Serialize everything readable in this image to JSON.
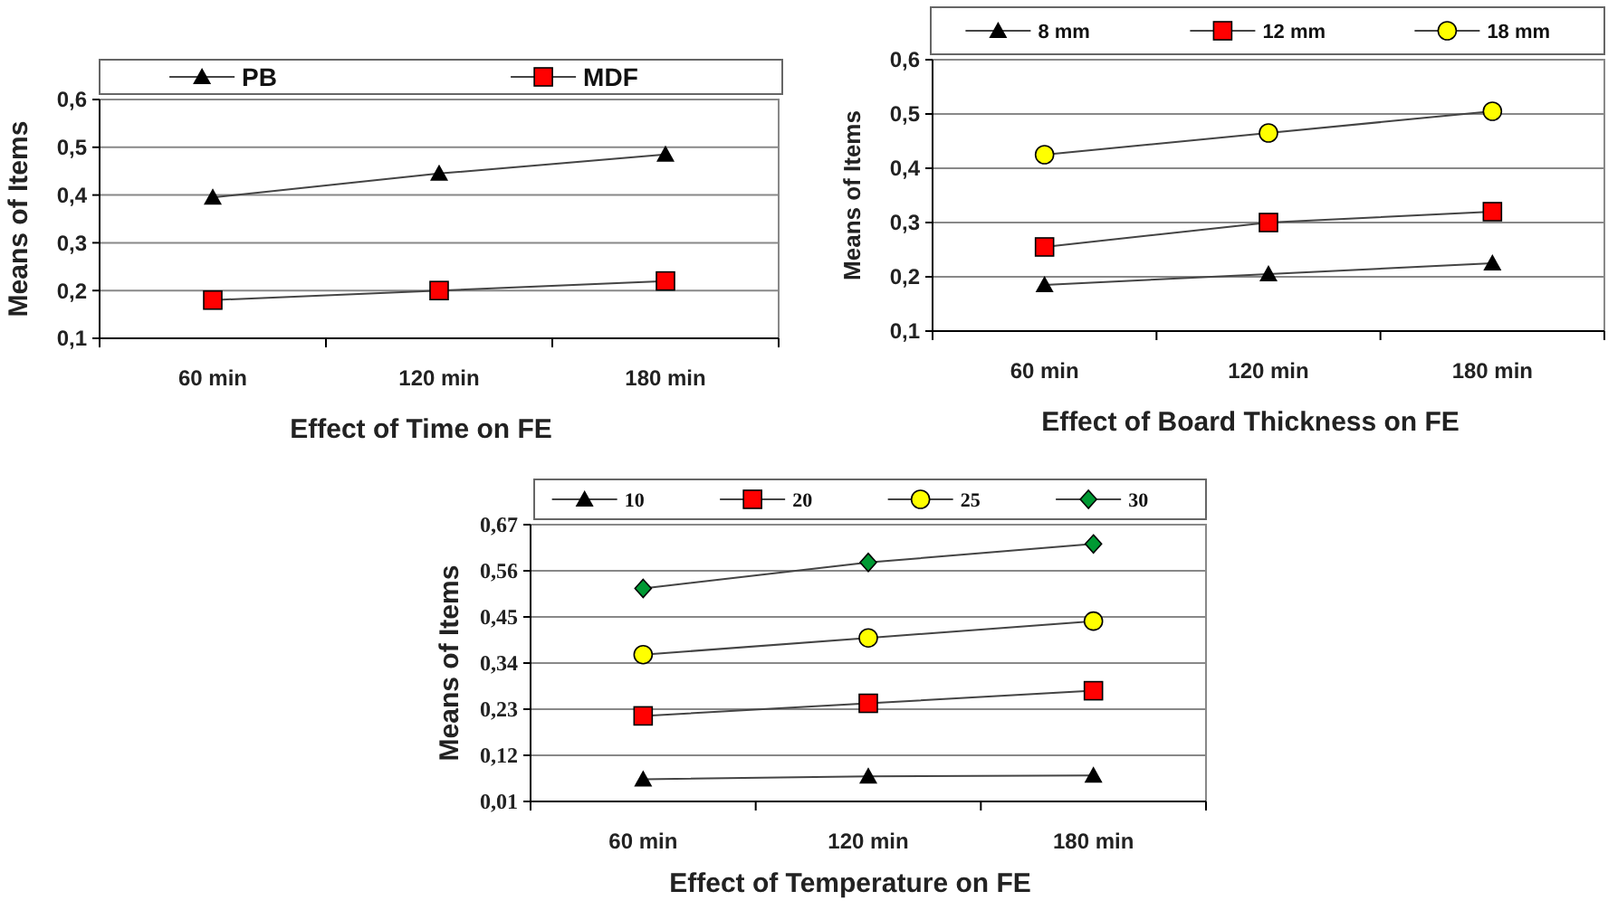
{
  "chart_data": [
    {
      "type": "line",
      "xlabel": "Effect of Time on FE",
      "ylabel": "Means of Items",
      "categories": [
        "60 min",
        "120 min",
        "180 min"
      ],
      "ylim": [
        0.1,
        0.6
      ],
      "yticks": [
        {
          "value": 0.1,
          "label": "0,1"
        },
        {
          "value": 0.2,
          "label": "0,2"
        },
        {
          "value": 0.3,
          "label": "0,3"
        },
        {
          "value": 0.4,
          "label": "0,4"
        },
        {
          "value": 0.5,
          "label": "0,5"
        },
        {
          "value": 0.6,
          "label": "0,6"
        }
      ],
      "grid": "y",
      "legend": "top",
      "series": [
        {
          "name": "PB",
          "color": "#000000",
          "marker": "triangle",
          "values": [
            0.395,
            0.445,
            0.485
          ]
        },
        {
          "name": "MDF",
          "color": "#ff0000",
          "marker": "square",
          "values": [
            0.18,
            0.2,
            0.22
          ]
        }
      ]
    },
    {
      "type": "line",
      "xlabel": "Effect of Board Thickness on FE",
      "ylabel": "Means of Items",
      "categories": [
        "60 min",
        "120 min",
        "180 min"
      ],
      "ylim": [
        0.1,
        0.6
      ],
      "yticks": [
        {
          "value": 0.1,
          "label": "0,1"
        },
        {
          "value": 0.2,
          "label": "0,2"
        },
        {
          "value": 0.3,
          "label": "0,3"
        },
        {
          "value": 0.4,
          "label": "0,4"
        },
        {
          "value": 0.5,
          "label": "0,5"
        },
        {
          "value": 0.6,
          "label": "0,6"
        }
      ],
      "grid": "y",
      "legend": "top",
      "series": [
        {
          "name": "8 mm",
          "color": "#000000",
          "marker": "triangle",
          "values": [
            0.185,
            0.205,
            0.225
          ]
        },
        {
          "name": "12 mm",
          "color": "#ff0000",
          "marker": "square",
          "values": [
            0.255,
            0.3,
            0.32
          ]
        },
        {
          "name": "18 mm",
          "color": "#ffff00",
          "marker": "circle",
          "values": [
            0.425,
            0.465,
            0.505
          ]
        }
      ]
    },
    {
      "type": "line",
      "xlabel": "Effect of Temperature on FE",
      "ylabel": "Means of Items",
      "categories": [
        "60 min",
        "120 min",
        "180 min"
      ],
      "ylim": [
        0.01,
        0.67
      ],
      "yticks": [
        {
          "value": 0.01,
          "label": "0,01"
        },
        {
          "value": 0.12,
          "label": "0,12"
        },
        {
          "value": 0.23,
          "label": "0,23"
        },
        {
          "value": 0.34,
          "label": "0,34"
        },
        {
          "value": 0.45,
          "label": "0,45"
        },
        {
          "value": 0.56,
          "label": "0,56"
        },
        {
          "value": 0.67,
          "label": "0,67"
        }
      ],
      "grid": "y",
      "legend": "top",
      "series": [
        {
          "name": "10",
          "color": "#000000",
          "marker": "triangle",
          "values": [
            0.063,
            0.07,
            0.072
          ]
        },
        {
          "name": "20",
          "color": "#ff0000",
          "marker": "square",
          "values": [
            0.214,
            0.244,
            0.274
          ]
        },
        {
          "name": "25",
          "color": "#ffff00",
          "marker": "circle",
          "values": [
            0.36,
            0.4,
            0.44
          ]
        },
        {
          "name": "30",
          "color": "#009933",
          "marker": "diamond",
          "values": [
            0.518,
            0.58,
            0.624
          ]
        }
      ]
    }
  ]
}
